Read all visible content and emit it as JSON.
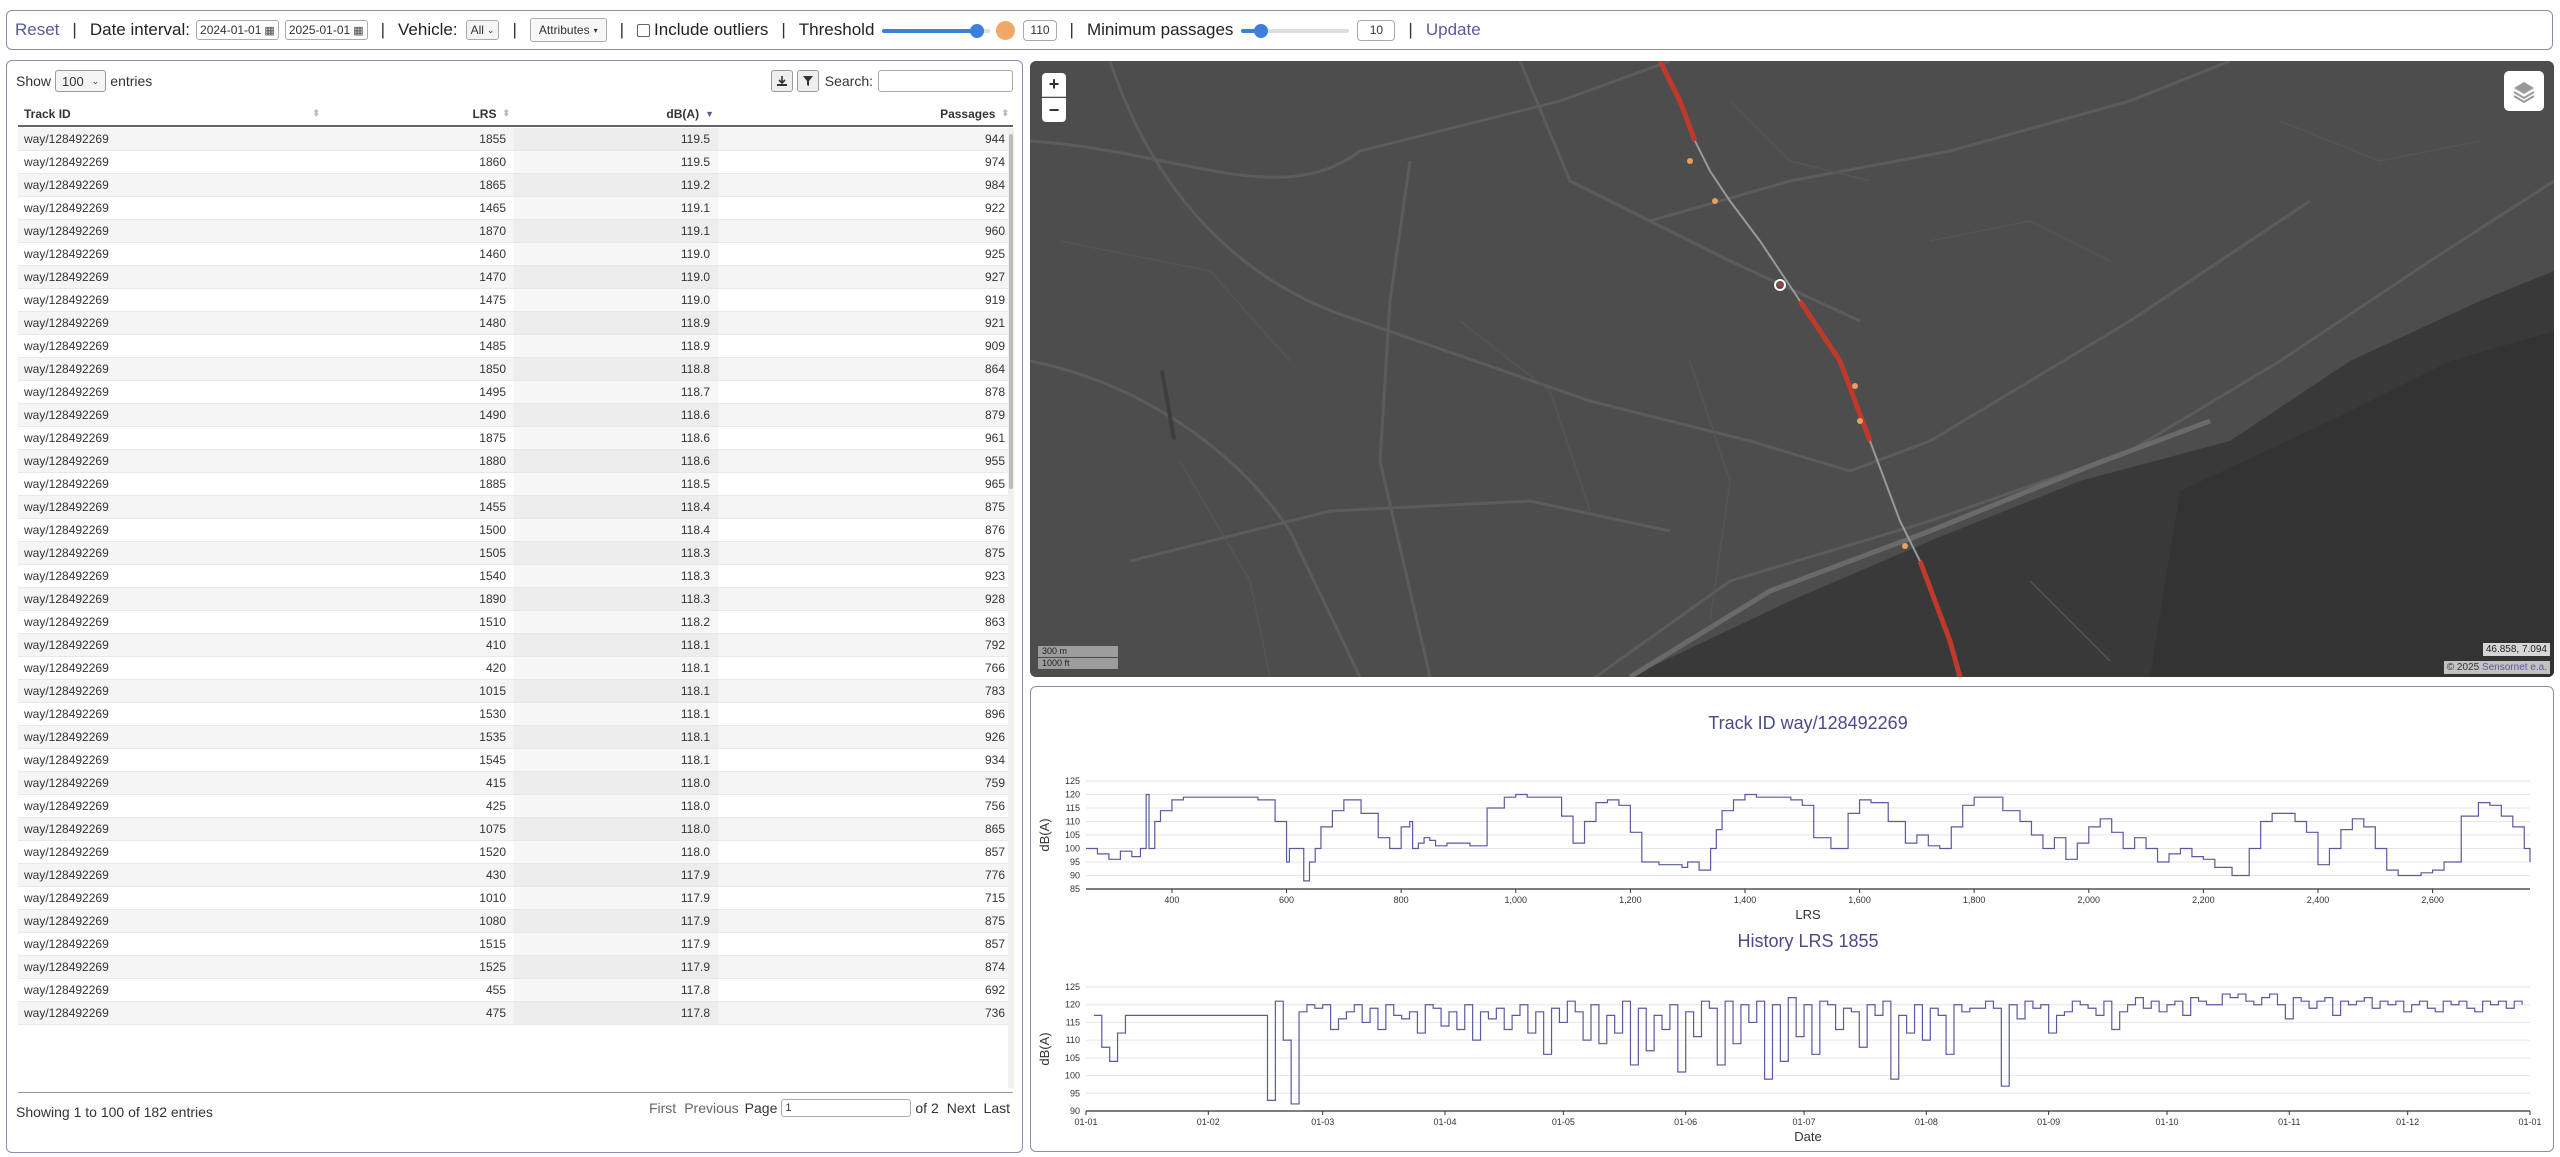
{
  "toolbar": {
    "reset_label": "Reset",
    "date_label": "Date interval:",
    "date_from": "2024-01-01",
    "date_to": "2025-01-01",
    "vehicle_label": "Vehicle:",
    "vehicle_value": "All",
    "attributes_label": "Attributes",
    "outliers_label": "Include outliers",
    "threshold_label": "Threshold",
    "threshold_value": "110",
    "threshold_fraction": 0.88,
    "threshold_color": "#f0a868",
    "min_passages_label": "Minimum passages",
    "min_passages_value": "10",
    "min_passages_fraction": 0.18,
    "update_label": "Update",
    "separator": "|"
  },
  "table": {
    "show_label": "Show",
    "entries_value": "100",
    "entries_label": "entries",
    "search_label": "Search:",
    "columns": [
      "Track ID",
      "LRS",
      "dB(A)",
      "Passages"
    ],
    "rows": [
      [
        "way/128492269",
        "1855",
        "119.5",
        "944"
      ],
      [
        "way/128492269",
        "1860",
        "119.5",
        "974"
      ],
      [
        "way/128492269",
        "1865",
        "119.2",
        "984"
      ],
      [
        "way/128492269",
        "1465",
        "119.1",
        "922"
      ],
      [
        "way/128492269",
        "1870",
        "119.1",
        "960"
      ],
      [
        "way/128492269",
        "1460",
        "119.0",
        "925"
      ],
      [
        "way/128492269",
        "1470",
        "119.0",
        "927"
      ],
      [
        "way/128492269",
        "1475",
        "119.0",
        "919"
      ],
      [
        "way/128492269",
        "1480",
        "118.9",
        "921"
      ],
      [
        "way/128492269",
        "1485",
        "118.9",
        "909"
      ],
      [
        "way/128492269",
        "1850",
        "118.8",
        "864"
      ],
      [
        "way/128492269",
        "1495",
        "118.7",
        "878"
      ],
      [
        "way/128492269",
        "1490",
        "118.6",
        "879"
      ],
      [
        "way/128492269",
        "1875",
        "118.6",
        "961"
      ],
      [
        "way/128492269",
        "1880",
        "118.6",
        "955"
      ],
      [
        "way/128492269",
        "1885",
        "118.5",
        "965"
      ],
      [
        "way/128492269",
        "1455",
        "118.4",
        "875"
      ],
      [
        "way/128492269",
        "1500",
        "118.4",
        "876"
      ],
      [
        "way/128492269",
        "1505",
        "118.3",
        "875"
      ],
      [
        "way/128492269",
        "1540",
        "118.3",
        "923"
      ],
      [
        "way/128492269",
        "1890",
        "118.3",
        "928"
      ],
      [
        "way/128492269",
        "1510",
        "118.2",
        "863"
      ],
      [
        "way/128492269",
        "410",
        "118.1",
        "792"
      ],
      [
        "way/128492269",
        "420",
        "118.1",
        "766"
      ],
      [
        "way/128492269",
        "1015",
        "118.1",
        "783"
      ],
      [
        "way/128492269",
        "1530",
        "118.1",
        "896"
      ],
      [
        "way/128492269",
        "1535",
        "118.1",
        "926"
      ],
      [
        "way/128492269",
        "1545",
        "118.1",
        "934"
      ],
      [
        "way/128492269",
        "415",
        "118.0",
        "759"
      ],
      [
        "way/128492269",
        "425",
        "118.0",
        "756"
      ],
      [
        "way/128492269",
        "1075",
        "118.0",
        "865"
      ],
      [
        "way/128492269",
        "1520",
        "118.0",
        "857"
      ],
      [
        "way/128492269",
        "430",
        "117.9",
        "776"
      ],
      [
        "way/128492269",
        "1010",
        "117.9",
        "715"
      ],
      [
        "way/128492269",
        "1080",
        "117.9",
        "875"
      ],
      [
        "way/128492269",
        "1515",
        "117.9",
        "857"
      ],
      [
        "way/128492269",
        "1525",
        "117.9",
        "874"
      ],
      [
        "way/128492269",
        "455",
        "117.8",
        "692"
      ],
      [
        "way/128492269",
        "475",
        "117.8",
        "736"
      ]
    ],
    "info": "Showing 1 to 100 of 182 entries",
    "pager": {
      "first": "First",
      "previous": "Previous",
      "page_label": "Page",
      "page_value": "1",
      "of_label": "of 2",
      "next": "Next",
      "last": "Last"
    }
  },
  "map": {
    "zoom_in": "+",
    "zoom_out": "−",
    "scale_m": "300 m",
    "scale_ft": "1000 ft",
    "coords": "46.858, 7.094",
    "attribution_prefix": "© 2025 ",
    "attribution_link": "Sensornet e.a.",
    "track_color": "#c0392b",
    "marker_color": "#e8a060"
  },
  "chart_data": [
    {
      "type": "line",
      "title": "Track ID way/128492269",
      "xlabel": "LRS",
      "ylabel": "dB(A)",
      "xlim": [
        250,
        2770
      ],
      "ylim": [
        85,
        125
      ],
      "xticks": [
        "400",
        "600",
        "800",
        "1,000",
        "1,200",
        "1,400",
        "1,600",
        "1,800",
        "2,000",
        "2,200",
        "2,400",
        "2,600"
      ],
      "xtick_values": [
        400,
        600,
        800,
        1000,
        1200,
        1400,
        1600,
        1800,
        2000,
        2200,
        2400,
        2600
      ],
      "yticks": [
        85,
        90,
        95,
        100,
        105,
        110,
        115,
        120,
        125
      ],
      "color": "#5a5aa0",
      "x": [
        250,
        270,
        290,
        310,
        330,
        345,
        355,
        360,
        370,
        380,
        400,
        420,
        450,
        500,
        550,
        580,
        600,
        605,
        630,
        640,
        650,
        660,
        680,
        700,
        730,
        760,
        780,
        800,
        815,
        820,
        830,
        840,
        850,
        860,
        880,
        900,
        920,
        950,
        980,
        1000,
        1020,
        1050,
        1080,
        1100,
        1120,
        1140,
        1160,
        1180,
        1200,
        1220,
        1250,
        1290,
        1300,
        1320,
        1340,
        1350,
        1360,
        1380,
        1400,
        1420,
        1450,
        1480,
        1500,
        1520,
        1550,
        1580,
        1600,
        1620,
        1650,
        1680,
        1700,
        1720,
        1740,
        1760,
        1780,
        1800,
        1820,
        1850,
        1880,
        1900,
        1920,
        1940,
        1960,
        1980,
        2000,
        2020,
        2040,
        2060,
        2080,
        2100,
        2120,
        2140,
        2160,
        2180,
        2200,
        2220,
        2250,
        2280,
        2300,
        2320,
        2340,
        2360,
        2380,
        2400,
        2420,
        2440,
        2460,
        2480,
        2500,
        2520,
        2540,
        2560,
        2580,
        2600,
        2620,
        2650,
        2680,
        2700,
        2720,
        2740,
        2760,
        2770
      ],
      "y": [
        100,
        98,
        96,
        99,
        97,
        100,
        120,
        100,
        110,
        114,
        118,
        119,
        119,
        119,
        118,
        110,
        95,
        100,
        88,
        95,
        100,
        108,
        114,
        118,
        113,
        104,
        100,
        108,
        110,
        100,
        102,
        104,
        103,
        101,
        102,
        102,
        101,
        115,
        119,
        120,
        119,
        119,
        112,
        102,
        110,
        117,
        118,
        116,
        106,
        95,
        94,
        93,
        95,
        92,
        100,
        107,
        114,
        118,
        120,
        119,
        119,
        118,
        116,
        104,
        100,
        113,
        118,
        117,
        110,
        102,
        105,
        101,
        100,
        108,
        116,
        119,
        119,
        114,
        110,
        105,
        100,
        104,
        96,
        102,
        108,
        111,
        106,
        100,
        104,
        100,
        95,
        98,
        100,
        97,
        96,
        93,
        90,
        100,
        110,
        113,
        113,
        110,
        106,
        94,
        100,
        107,
        111,
        108,
        100,
        92,
        90,
        90,
        91,
        92,
        95,
        112,
        117,
        116,
        112,
        108,
        100,
        95
      ]
    },
    {
      "type": "line",
      "title": "History LRS 1855",
      "xlabel": "Date",
      "ylabel": "dB(A)",
      "xlim": [
        0,
        366
      ],
      "ylim": [
        90,
        125
      ],
      "xticks": [
        "01-01",
        "01-02",
        "01-03",
        "01-04",
        "01-05",
        "01-06",
        "01-07",
        "01-08",
        "01-09",
        "01-10",
        "01-11",
        "01-12",
        "01-01"
      ],
      "xtick_values": [
        0,
        31,
        60,
        91,
        121,
        152,
        182,
        213,
        244,
        274,
        305,
        335,
        366
      ],
      "yticks": [
        90,
        95,
        100,
        105,
        110,
        115,
        120,
        125
      ],
      "color": "#5a5aa0",
      "x": [
        2,
        4,
        6,
        8,
        10,
        46,
        48,
        50,
        52,
        54,
        56,
        58,
        60,
        62,
        64,
        66,
        68,
        70,
        72,
        74,
        76,
        78,
        80,
        82,
        84,
        86,
        88,
        90,
        92,
        94,
        96,
        98,
        100,
        102,
        104,
        106,
        108,
        110,
        112,
        114,
        116,
        118,
        120,
        122,
        124,
        126,
        128,
        130,
        132,
        134,
        136,
        138,
        140,
        142,
        144,
        146,
        148,
        150,
        152,
        154,
        156,
        158,
        160,
        162,
        164,
        166,
        168,
        170,
        172,
        174,
        176,
        178,
        180,
        182,
        184,
        186,
        188,
        190,
        192,
        194,
        196,
        198,
        200,
        202,
        204,
        206,
        208,
        210,
        212,
        214,
        216,
        218,
        220,
        222,
        224,
        226,
        228,
        230,
        232,
        234,
        236,
        238,
        240,
        242,
        244,
        246,
        248,
        250,
        252,
        254,
        256,
        258,
        260,
        262,
        264,
        266,
        268,
        270,
        272,
        274,
        276,
        278,
        280,
        282,
        284,
        286,
        288,
        290,
        292,
        294,
        296,
        298,
        300,
        302,
        304,
        306,
        308,
        310,
        312,
        314,
        316,
        318,
        320,
        322,
        324,
        326,
        328,
        330,
        332,
        334,
        336,
        338,
        340,
        342,
        344,
        346,
        348,
        350,
        352,
        354,
        356,
        358,
        360,
        362,
        364
      ],
      "y": [
        117,
        108,
        104,
        112,
        117,
        93,
        121,
        110,
        92,
        118,
        120,
        119,
        120,
        113,
        116,
        118,
        120,
        115,
        119,
        113,
        120,
        117,
        116,
        118,
        112,
        120,
        119,
        114,
        118,
        113,
        120,
        110,
        118,
        116,
        119,
        113,
        117,
        120,
        112,
        118,
        106,
        119,
        115,
        121,
        118,
        110,
        120,
        109,
        117,
        112,
        121,
        103,
        119,
        107,
        117,
        113,
        120,
        101,
        118,
        111,
        121,
        119,
        103,
        121,
        109,
        120,
        115,
        121,
        99,
        120,
        104,
        122,
        111,
        120,
        106,
        121,
        120,
        113,
        119,
        118,
        108,
        120,
        117,
        121,
        99,
        117,
        112,
        120,
        110,
        119,
        117,
        106,
        120,
        118,
        119,
        119,
        121,
        119,
        97,
        120,
        116,
        121,
        119,
        120,
        112,
        117,
        118,
        121,
        120,
        119,
        117,
        121,
        113,
        118,
        120,
        122,
        119,
        121,
        118,
        120,
        121,
        117,
        122,
        121,
        120,
        120,
        123,
        122,
        123,
        121,
        120,
        122,
        123,
        120,
        116,
        122,
        121,
        119,
        121,
        122,
        117,
        121,
        120,
        121,
        122,
        119,
        121,
        120,
        121,
        118,
        120,
        121,
        119,
        118,
        121,
        120,
        121,
        119,
        118,
        121,
        120,
        121,
        119,
        121,
        120
      ]
    }
  ]
}
